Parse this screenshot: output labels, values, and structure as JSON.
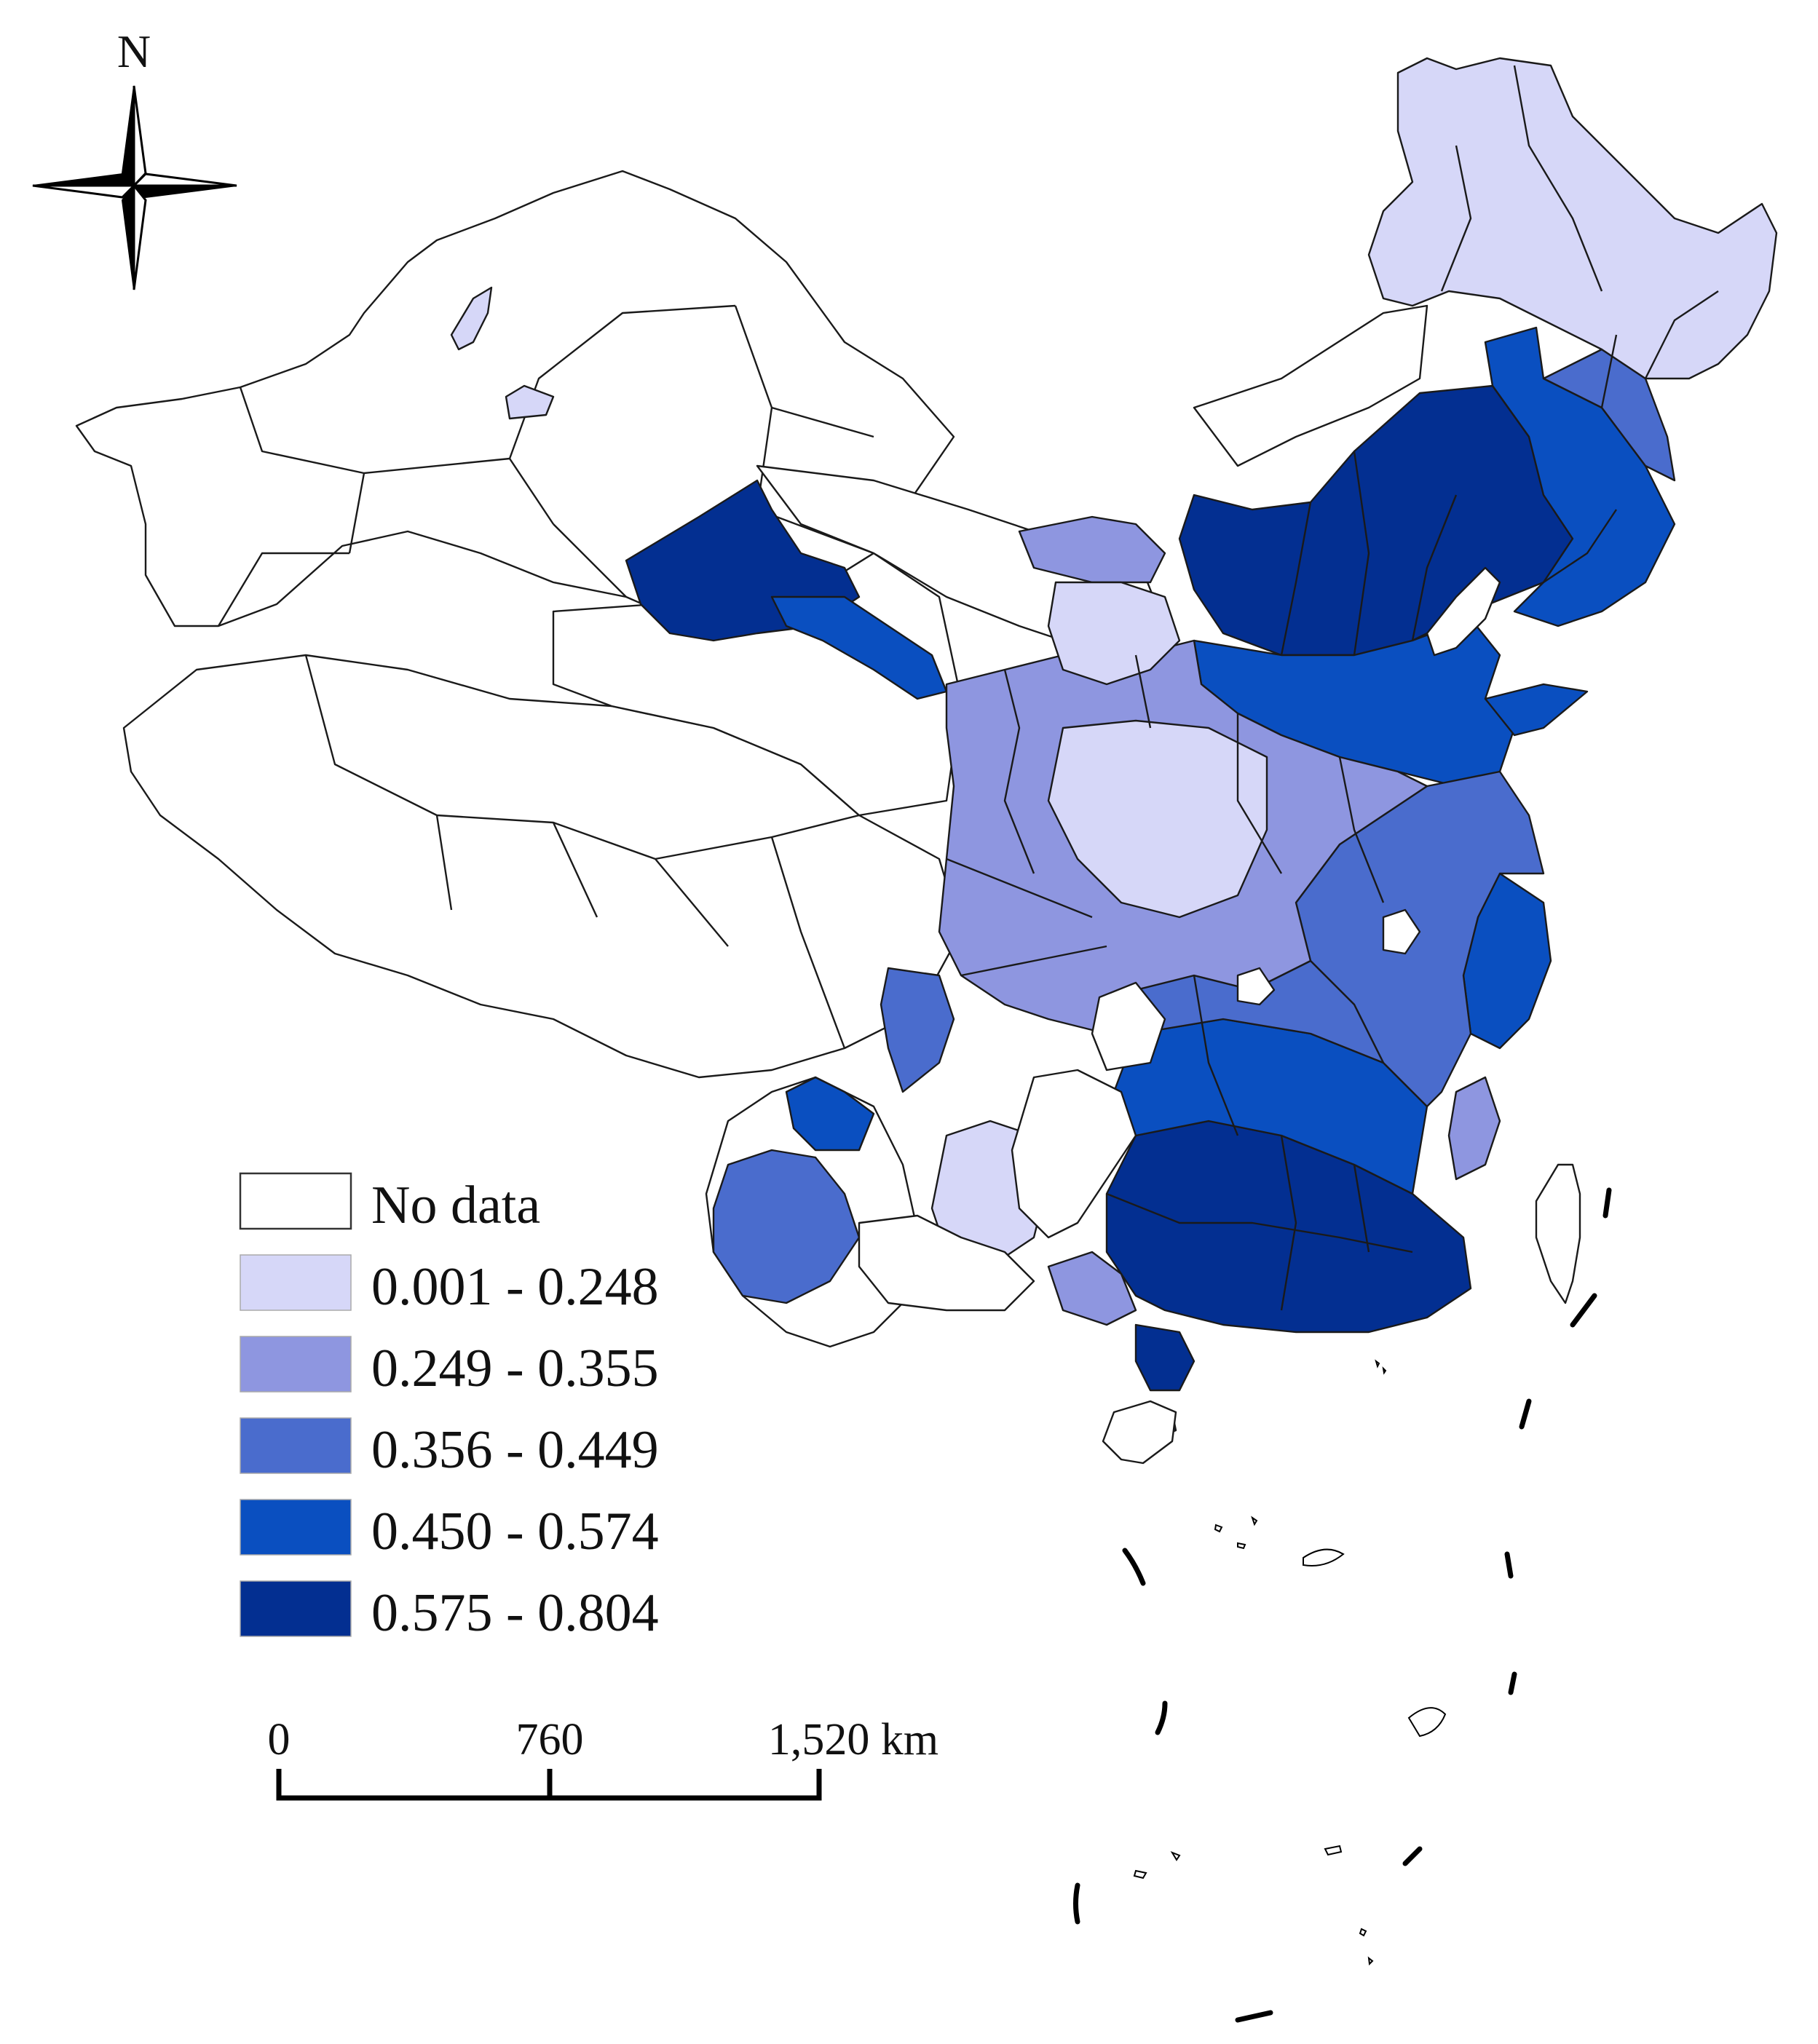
{
  "north_arrow": {
    "label": "N"
  },
  "legend": {
    "items": [
      {
        "label": "No data",
        "color": "#ffffff"
      },
      {
        "label": "0.001 - 0.248",
        "color": "#d6d7f8"
      },
      {
        "label": "0.249 - 0.355",
        "color": "#8e96e0"
      },
      {
        "label": "0.356 - 0.449",
        "color": "#4a6ccd"
      },
      {
        "label": "0.450 - 0.574",
        "color": "#0a4fc0"
      },
      {
        "label": "0.575 - 0.804",
        "color": "#032f91"
      }
    ]
  },
  "scale_bar": {
    "ticks": [
      "0",
      "760",
      "1,520 km"
    ]
  }
}
